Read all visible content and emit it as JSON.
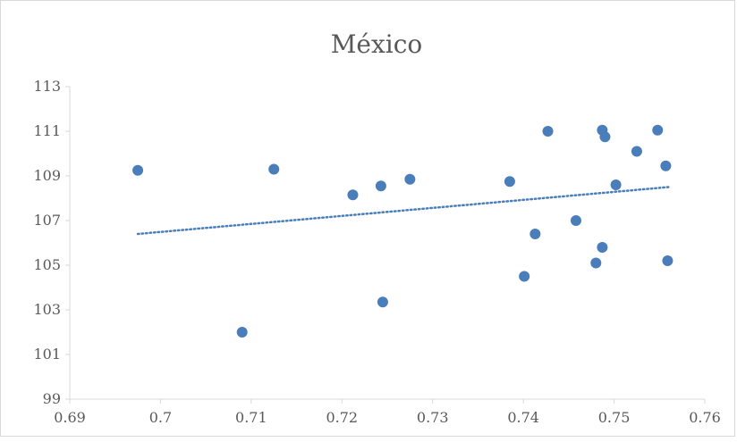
{
  "chart_data": {
    "type": "scatter",
    "title": "México",
    "xlabel": "",
    "ylabel": "",
    "xlim": [
      0.69,
      0.76
    ],
    "ylim": [
      99,
      113
    ],
    "x_ticks": [
      "0.69",
      "0.7",
      "0.71",
      "0.72",
      "0.73",
      "0.74",
      "0.75",
      "0.76"
    ],
    "y_ticks": [
      "99",
      "101",
      "103",
      "105",
      "107",
      "109",
      "111",
      "113"
    ],
    "grid": false,
    "legend": "none",
    "points": [
      {
        "x": 0.6975,
        "y": 109.25
      },
      {
        "x": 0.709,
        "y": 102.0
      },
      {
        "x": 0.7125,
        "y": 109.3
      },
      {
        "x": 0.7212,
        "y": 108.15
      },
      {
        "x": 0.7243,
        "y": 108.55
      },
      {
        "x": 0.7245,
        "y": 103.35
      },
      {
        "x": 0.7275,
        "y": 108.85
      },
      {
        "x": 0.7385,
        "y": 108.75
      },
      {
        "x": 0.7401,
        "y": 104.5
      },
      {
        "x": 0.7413,
        "y": 106.4
      },
      {
        "x": 0.7427,
        "y": 111.0
      },
      {
        "x": 0.7458,
        "y": 107.0
      },
      {
        "x": 0.748,
        "y": 105.1
      },
      {
        "x": 0.7487,
        "y": 111.05
      },
      {
        "x": 0.7487,
        "y": 105.8
      },
      {
        "x": 0.749,
        "y": 110.75
      },
      {
        "x": 0.7502,
        "y": 108.6
      },
      {
        "x": 0.7525,
        "y": 110.1
      },
      {
        "x": 0.7548,
        "y": 111.05
      },
      {
        "x": 0.7557,
        "y": 109.45
      },
      {
        "x": 0.7559,
        "y": 105.2
      }
    ],
    "trendline": {
      "style": "dotted",
      "x": [
        0.6975,
        0.756
      ],
      "y": [
        106.4,
        108.5
      ]
    },
    "colors": {
      "points": "#4a7ebb",
      "trendline": "#4a7ebb",
      "axis": "#d9d9d9",
      "text": "#595959"
    }
  }
}
